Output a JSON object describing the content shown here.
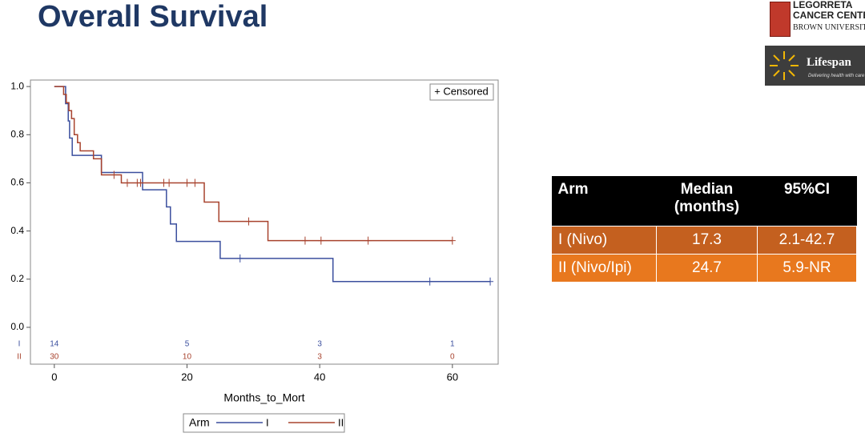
{
  "slide_title": "Overall Survival",
  "logos": {
    "legorreta": [
      "LEGORRETA",
      "CANCER CENTE",
      "BROWN UNIVERSIT"
    ],
    "lifespan": "Lifespan",
    "lifespan_tagline": "Delivering health with care"
  },
  "chart_data": {
    "type": "step",
    "xlabel": "Months_to_Mort",
    "xlim": [
      -3.6,
      66.9
    ],
    "xticks": [
      0,
      20,
      40,
      60
    ],
    "ylim": [
      -0.153,
      1.027
    ],
    "yticks": [
      {
        "value": 0,
        "label": "0.0"
      },
      {
        "value": 0.2,
        "label": "0.2"
      },
      {
        "value": 0.4,
        "label": "0.4"
      },
      {
        "value": 0.6,
        "label": "0.6"
      },
      {
        "value": 0.8,
        "label": "0.8"
      },
      {
        "value": 1,
        "label": "1.0"
      }
    ],
    "censor_legend": "+ Censored",
    "legend_title": "Arm",
    "series": [
      {
        "name": "I",
        "color": "#3b4f9e",
        "x": [
          0,
          1.7,
          2.1,
          2.3,
          2.7,
          7.1,
          13.3,
          16.9,
          17.5,
          18.4,
          25,
          42,
          65.7
        ],
        "values": [
          1,
          0.929,
          0.857,
          0.786,
          0.714,
          0.643,
          0.571,
          0.5,
          0.429,
          0.357,
          0.286,
          0.19,
          0.19
        ],
        "censored_x": [
          28,
          56.6,
          65.7
        ],
        "censored_values": [
          0.286,
          0.19,
          0.19
        ]
      },
      {
        "name": "II",
        "color": "#a8432e",
        "x": [
          0,
          1.4,
          1.8,
          2.2,
          2.6,
          3.0,
          3.5,
          3.9,
          5.9,
          7.1,
          10.1,
          22.6,
          24.8,
          32.2,
          60
        ],
        "values": [
          1,
          0.967,
          0.933,
          0.9,
          0.867,
          0.8,
          0.767,
          0.733,
          0.7,
          0.633,
          0.6,
          0.52,
          0.44,
          0.36,
          0.36
        ],
        "censored_x": [
          9,
          11,
          12.5,
          13,
          16.5,
          17.3,
          20,
          21.2,
          29.3,
          37.8,
          40.2,
          47.3,
          60
        ],
        "censored_values": [
          0.633,
          0.6,
          0.6,
          0.6,
          0.6,
          0.6,
          0.6,
          0.6,
          0.44,
          0.36,
          0.36,
          0.36,
          0.36
        ]
      }
    ],
    "at_risk": {
      "x": [
        0,
        20,
        40,
        60
      ],
      "values": [
        [
          14,
          5,
          3,
          1
        ],
        [
          30,
          10,
          3,
          0
        ]
      ]
    }
  },
  "table": {
    "header": [
      "Arm",
      "Median (months)",
      "95%CI"
    ],
    "rows": [
      [
        "I (Nivo)",
        "17.3",
        "2.1-42.7"
      ],
      [
        "II (Nivo/Ipi)",
        "24.7",
        "5.9-NR"
      ]
    ]
  }
}
